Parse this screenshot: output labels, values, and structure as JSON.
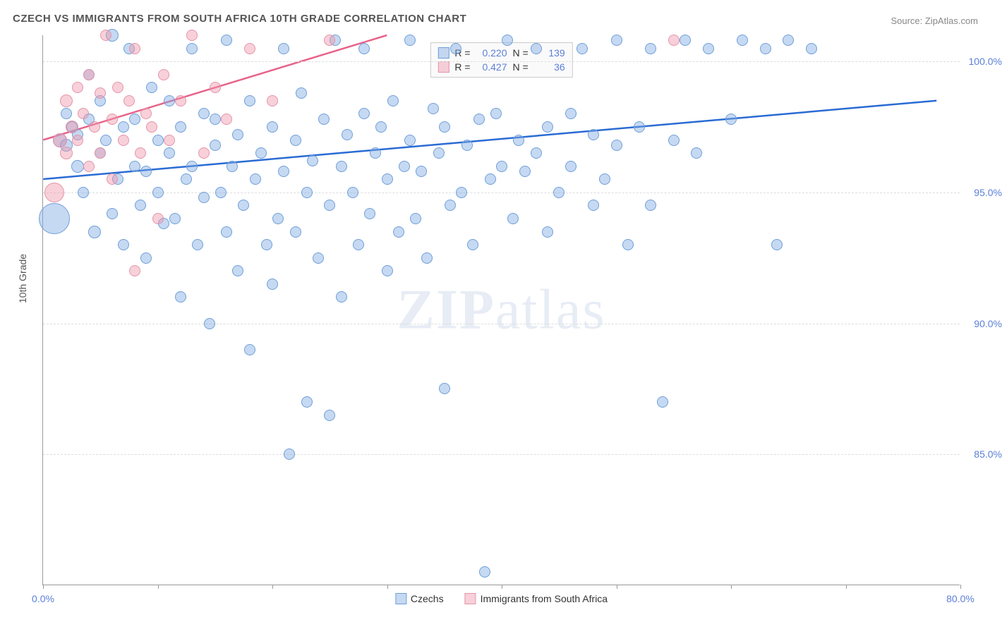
{
  "title": "CZECH VS IMMIGRANTS FROM SOUTH AFRICA 10TH GRADE CORRELATION CHART",
  "source": "Source: ZipAtlas.com",
  "watermark": "ZIPatlas",
  "y_axis_title": "10th Grade",
  "chart": {
    "type": "scatter",
    "xlim": [
      0,
      80
    ],
    "ylim": [
      80,
      101
    ],
    "x_ticks": [
      0,
      10,
      20,
      30,
      40,
      50,
      60,
      70,
      80
    ],
    "x_tick_labels": {
      "0": "0.0%",
      "80": "80.0%"
    },
    "y_gridlines": [
      85,
      90,
      95,
      100
    ],
    "y_labels": {
      "85": "85.0%",
      "90": "90.0%",
      "95": "95.0%",
      "100": "100.0%"
    },
    "background_color": "#ffffff",
    "grid_color": "#dddddd",
    "series": [
      {
        "name": "Czechs",
        "fill": "rgba(128,170,226,0.45)",
        "stroke": "#6f9fd8",
        "trend_color": "#2a6bd4",
        "trend_y_start": 95.5,
        "trend_y_end": 98.5,
        "trend_x_end": 78,
        "R": "0.220",
        "N": "139",
        "points": [
          {
            "x": 1,
            "y": 94,
            "r": 22
          },
          {
            "x": 1.5,
            "y": 97,
            "r": 10
          },
          {
            "x": 2,
            "y": 96.8,
            "r": 9
          },
          {
            "x": 2,
            "y": 98,
            "r": 8
          },
          {
            "x": 2.5,
            "y": 97.5,
            "r": 8
          },
          {
            "x": 3,
            "y": 96,
            "r": 9
          },
          {
            "x": 3,
            "y": 97.2,
            "r": 8
          },
          {
            "x": 3.5,
            "y": 95,
            "r": 8
          },
          {
            "x": 4,
            "y": 97.8,
            "r": 8
          },
          {
            "x": 4,
            "y": 99.5,
            "r": 8
          },
          {
            "x": 4.5,
            "y": 93.5,
            "r": 9
          },
          {
            "x": 5,
            "y": 96.5,
            "r": 8
          },
          {
            "x": 5,
            "y": 98.5,
            "r": 8
          },
          {
            "x": 5.5,
            "y": 97,
            "r": 8
          },
          {
            "x": 6,
            "y": 101,
            "r": 9
          },
          {
            "x": 6,
            "y": 94.2,
            "r": 8
          },
          {
            "x": 6.5,
            "y": 95.5,
            "r": 8
          },
          {
            "x": 7,
            "y": 97.5,
            "r": 8
          },
          {
            "x": 7,
            "y": 93,
            "r": 8
          },
          {
            "x": 7.5,
            "y": 100.5,
            "r": 8
          },
          {
            "x": 8,
            "y": 96,
            "r": 8
          },
          {
            "x": 8,
            "y": 97.8,
            "r": 8
          },
          {
            "x": 8.5,
            "y": 94.5,
            "r": 8
          },
          {
            "x": 9,
            "y": 95.8,
            "r": 8
          },
          {
            "x": 9,
            "y": 92.5,
            "r": 8
          },
          {
            "x": 9.5,
            "y": 99,
            "r": 8
          },
          {
            "x": 10,
            "y": 97,
            "r": 8
          },
          {
            "x": 10,
            "y": 95,
            "r": 8
          },
          {
            "x": 10.5,
            "y": 93.8,
            "r": 8
          },
          {
            "x": 11,
            "y": 96.5,
            "r": 8
          },
          {
            "x": 11,
            "y": 98.5,
            "r": 8
          },
          {
            "x": 11.5,
            "y": 94,
            "r": 8
          },
          {
            "x": 12,
            "y": 91,
            "r": 8
          },
          {
            "x": 12,
            "y": 97.5,
            "r": 8
          },
          {
            "x": 12.5,
            "y": 95.5,
            "r": 8
          },
          {
            "x": 13,
            "y": 100.5,
            "r": 8
          },
          {
            "x": 13,
            "y": 96,
            "r": 8
          },
          {
            "x": 13.5,
            "y": 93,
            "r": 8
          },
          {
            "x": 14,
            "y": 98,
            "r": 8
          },
          {
            "x": 14,
            "y": 94.8,
            "r": 8
          },
          {
            "x": 14.5,
            "y": 90,
            "r": 8
          },
          {
            "x": 15,
            "y": 96.8,
            "r": 8
          },
          {
            "x": 15,
            "y": 97.8,
            "r": 8
          },
          {
            "x": 15.5,
            "y": 95,
            "r": 8
          },
          {
            "x": 16,
            "y": 93.5,
            "r": 8
          },
          {
            "x": 16,
            "y": 100.8,
            "r": 8
          },
          {
            "x": 16.5,
            "y": 96,
            "r": 8
          },
          {
            "x": 17,
            "y": 92,
            "r": 8
          },
          {
            "x": 17,
            "y": 97.2,
            "r": 8
          },
          {
            "x": 17.5,
            "y": 94.5,
            "r": 8
          },
          {
            "x": 18,
            "y": 98.5,
            "r": 8
          },
          {
            "x": 18,
            "y": 89,
            "r": 8
          },
          {
            "x": 18.5,
            "y": 95.5,
            "r": 8
          },
          {
            "x": 19,
            "y": 96.5,
            "r": 8
          },
          {
            "x": 19.5,
            "y": 93,
            "r": 8
          },
          {
            "x": 20,
            "y": 97.5,
            "r": 8
          },
          {
            "x": 20,
            "y": 91.5,
            "r": 8
          },
          {
            "x": 20.5,
            "y": 94,
            "r": 8
          },
          {
            "x": 21,
            "y": 100.5,
            "r": 8
          },
          {
            "x": 21,
            "y": 95.8,
            "r": 8
          },
          {
            "x": 21.5,
            "y": 85,
            "r": 8
          },
          {
            "x": 22,
            "y": 97,
            "r": 8
          },
          {
            "x": 22,
            "y": 93.5,
            "r": 8
          },
          {
            "x": 22.5,
            "y": 98.8,
            "r": 8
          },
          {
            "x": 23,
            "y": 87,
            "r": 8
          },
          {
            "x": 23,
            "y": 95,
            "r": 8
          },
          {
            "x": 23.5,
            "y": 96.2,
            "r": 8
          },
          {
            "x": 24,
            "y": 92.5,
            "r": 8
          },
          {
            "x": 24.5,
            "y": 97.8,
            "r": 8
          },
          {
            "x": 25,
            "y": 94.5,
            "r": 8
          },
          {
            "x": 25,
            "y": 86.5,
            "r": 8
          },
          {
            "x": 25.5,
            "y": 100.8,
            "r": 8
          },
          {
            "x": 26,
            "y": 96,
            "r": 8
          },
          {
            "x": 26,
            "y": 91,
            "r": 8
          },
          {
            "x": 26.5,
            "y": 97.2,
            "r": 8
          },
          {
            "x": 27,
            "y": 95,
            "r": 8
          },
          {
            "x": 27.5,
            "y": 93,
            "r": 8
          },
          {
            "x": 28,
            "y": 98,
            "r": 8
          },
          {
            "x": 28,
            "y": 100.5,
            "r": 8
          },
          {
            "x": 28.5,
            "y": 94.2,
            "r": 8
          },
          {
            "x": 29,
            "y": 96.5,
            "r": 8
          },
          {
            "x": 29.5,
            "y": 97.5,
            "r": 8
          },
          {
            "x": 30,
            "y": 92,
            "r": 8
          },
          {
            "x": 30,
            "y": 95.5,
            "r": 8
          },
          {
            "x": 30.5,
            "y": 98.5,
            "r": 8
          },
          {
            "x": 31,
            "y": 93.5,
            "r": 8
          },
          {
            "x": 31.5,
            "y": 96,
            "r": 8
          },
          {
            "x": 32,
            "y": 100.8,
            "r": 8
          },
          {
            "x": 32,
            "y": 97,
            "r": 8
          },
          {
            "x": 32.5,
            "y": 94,
            "r": 8
          },
          {
            "x": 33,
            "y": 95.8,
            "r": 8
          },
          {
            "x": 33.5,
            "y": 92.5,
            "r": 8
          },
          {
            "x": 34,
            "y": 98.2,
            "r": 8
          },
          {
            "x": 34.5,
            "y": 96.5,
            "r": 8
          },
          {
            "x": 35,
            "y": 87.5,
            "r": 8
          },
          {
            "x": 35,
            "y": 97.5,
            "r": 8
          },
          {
            "x": 35.5,
            "y": 94.5,
            "r": 8
          },
          {
            "x": 36,
            "y": 100.5,
            "r": 8
          },
          {
            "x": 36.5,
            "y": 95,
            "r": 8
          },
          {
            "x": 37,
            "y": 96.8,
            "r": 8
          },
          {
            "x": 37.5,
            "y": 93,
            "r": 8
          },
          {
            "x": 38,
            "y": 97.8,
            "r": 8
          },
          {
            "x": 38.5,
            "y": 80.5,
            "r": 8
          },
          {
            "x": 39,
            "y": 95.5,
            "r": 8
          },
          {
            "x": 39.5,
            "y": 98,
            "r": 8
          },
          {
            "x": 40,
            "y": 96,
            "r": 8
          },
          {
            "x": 40.5,
            "y": 100.8,
            "r": 8
          },
          {
            "x": 41,
            "y": 94,
            "r": 8
          },
          {
            "x": 41.5,
            "y": 97,
            "r": 8
          },
          {
            "x": 42,
            "y": 95.8,
            "r": 8
          },
          {
            "x": 43,
            "y": 100.5,
            "r": 8
          },
          {
            "x": 43,
            "y": 96.5,
            "r": 8
          },
          {
            "x": 44,
            "y": 97.5,
            "r": 8
          },
          {
            "x": 44,
            "y": 93.5,
            "r": 8
          },
          {
            "x": 45,
            "y": 95,
            "r": 8
          },
          {
            "x": 46,
            "y": 98,
            "r": 8
          },
          {
            "x": 46,
            "y": 96,
            "r": 8
          },
          {
            "x": 47,
            "y": 100.5,
            "r": 8
          },
          {
            "x": 48,
            "y": 94.5,
            "r": 8
          },
          {
            "x": 48,
            "y": 97.2,
            "r": 8
          },
          {
            "x": 49,
            "y": 95.5,
            "r": 8
          },
          {
            "x": 50,
            "y": 100.8,
            "r": 8
          },
          {
            "x": 50,
            "y": 96.8,
            "r": 8
          },
          {
            "x": 51,
            "y": 93,
            "r": 8
          },
          {
            "x": 52,
            "y": 97.5,
            "r": 8
          },
          {
            "x": 53,
            "y": 100.5,
            "r": 8
          },
          {
            "x": 53,
            "y": 94.5,
            "r": 8
          },
          {
            "x": 54,
            "y": 87,
            "r": 8
          },
          {
            "x": 55,
            "y": 97,
            "r": 8
          },
          {
            "x": 56,
            "y": 100.8,
            "r": 8
          },
          {
            "x": 57,
            "y": 96.5,
            "r": 8
          },
          {
            "x": 58,
            "y": 100.5,
            "r": 8
          },
          {
            "x": 60,
            "y": 97.8,
            "r": 8
          },
          {
            "x": 61,
            "y": 100.8,
            "r": 8
          },
          {
            "x": 63,
            "y": 100.5,
            "r": 8
          },
          {
            "x": 64,
            "y": 93,
            "r": 8
          },
          {
            "x": 65,
            "y": 100.8,
            "r": 8
          },
          {
            "x": 67,
            "y": 100.5,
            "r": 8
          }
        ]
      },
      {
        "name": "Immigrants from South Africa",
        "fill": "rgba(240,150,170,0.45)",
        "stroke": "#e295aa",
        "trend_color": "#e8638a",
        "trend_y_start": 97,
        "trend_y_end": 101,
        "trend_x_end": 30,
        "R": "0.427",
        "N": "36",
        "points": [
          {
            "x": 1,
            "y": 95,
            "r": 14
          },
          {
            "x": 1.5,
            "y": 97,
            "r": 10
          },
          {
            "x": 2,
            "y": 98.5,
            "r": 9
          },
          {
            "x": 2,
            "y": 96.5,
            "r": 9
          },
          {
            "x": 2.5,
            "y": 97.5,
            "r": 9
          },
          {
            "x": 3,
            "y": 99,
            "r": 8
          },
          {
            "x": 3,
            "y": 97,
            "r": 8
          },
          {
            "x": 3.5,
            "y": 98,
            "r": 8
          },
          {
            "x": 4,
            "y": 96,
            "r": 8
          },
          {
            "x": 4,
            "y": 99.5,
            "r": 8
          },
          {
            "x": 4.5,
            "y": 97.5,
            "r": 8
          },
          {
            "x": 5,
            "y": 98.8,
            "r": 8
          },
          {
            "x": 5,
            "y": 96.5,
            "r": 8
          },
          {
            "x": 5.5,
            "y": 101,
            "r": 8
          },
          {
            "x": 6,
            "y": 97.8,
            "r": 8
          },
          {
            "x": 6,
            "y": 95.5,
            "r": 8
          },
          {
            "x": 6.5,
            "y": 99,
            "r": 8
          },
          {
            "x": 7,
            "y": 97,
            "r": 8
          },
          {
            "x": 7.5,
            "y": 98.5,
            "r": 8
          },
          {
            "x": 8,
            "y": 92,
            "r": 8
          },
          {
            "x": 8,
            "y": 100.5,
            "r": 8
          },
          {
            "x": 8.5,
            "y": 96.5,
            "r": 8
          },
          {
            "x": 9,
            "y": 98,
            "r": 8
          },
          {
            "x": 9.5,
            "y": 97.5,
            "r": 8
          },
          {
            "x": 10,
            "y": 94,
            "r": 8
          },
          {
            "x": 10.5,
            "y": 99.5,
            "r": 8
          },
          {
            "x": 11,
            "y": 97,
            "r": 8
          },
          {
            "x": 12,
            "y": 98.5,
            "r": 8
          },
          {
            "x": 13,
            "y": 101,
            "r": 8
          },
          {
            "x": 14,
            "y": 96.5,
            "r": 8
          },
          {
            "x": 15,
            "y": 99,
            "r": 8
          },
          {
            "x": 16,
            "y": 97.8,
            "r": 8
          },
          {
            "x": 18,
            "y": 100.5,
            "r": 8
          },
          {
            "x": 20,
            "y": 98.5,
            "r": 8
          },
          {
            "x": 25,
            "y": 100.8,
            "r": 8
          },
          {
            "x": 55,
            "y": 100.8,
            "r": 8
          }
        ]
      }
    ]
  },
  "legend": {
    "series1_label": "Czechs",
    "series2_label": "Immigrants from South Africa"
  }
}
